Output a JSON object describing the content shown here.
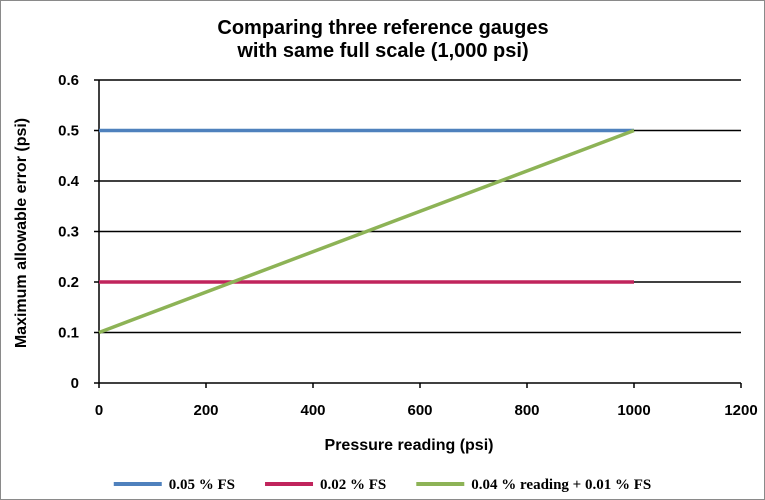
{
  "chart_data": {
    "type": "line",
    "title_lines": [
      "Comparing three reference gauges",
      "with same full scale (1,000 psi)"
    ],
    "xlabel": "Pressure reading (psi)",
    "ylabel": "Maximum allowable error (psi)",
    "xlim": [
      0,
      1200
    ],
    "ylim": [
      0,
      0.6
    ],
    "x_ticks": [
      0,
      200,
      400,
      600,
      800,
      1000,
      1200
    ],
    "y_ticks": [
      0,
      0.1,
      0.2,
      0.3,
      0.4,
      0.5,
      0.6
    ],
    "x_tick_labels": [
      "0",
      "200",
      "400",
      "600",
      "800",
      "1000",
      "1200"
    ],
    "y_tick_labels": [
      "0",
      "0.1",
      "0.2",
      "0.3",
      "0.4",
      "0.5",
      "0.6"
    ],
    "grid": "horizontal",
    "legend_position": "bottom",
    "series": [
      {
        "name": "0.05 % FS",
        "color": "#4f81bd",
        "x": [
          0,
          1000
        ],
        "y": [
          0.5,
          0.5
        ]
      },
      {
        "name": "0.02 % FS",
        "color": "#c0245c",
        "x": [
          0,
          1000
        ],
        "y": [
          0.2,
          0.2
        ]
      },
      {
        "name": "0.04 % reading + 0.01 % FS",
        "color": "#8db356",
        "x": [
          0,
          1000
        ],
        "y": [
          0.1,
          0.5
        ]
      }
    ]
  }
}
